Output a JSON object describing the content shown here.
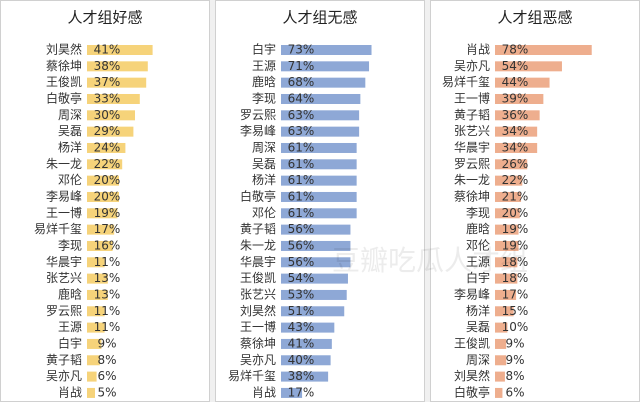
{
  "chart_data": [
    {
      "type": "bar",
      "title": "人才组好感",
      "color": "#f6d37a",
      "categories": [
        "刘昊然",
        "蔡徐坤",
        "王俊凯",
        "白敬亭",
        "周深",
        "吴磊",
        "杨洋",
        "朱一龙",
        "邓伦",
        "李易峰",
        "王一博",
        "易烊千玺",
        "李现",
        "华晨宇",
        "张艺兴",
        "鹿晗",
        "罗云熙",
        "王源",
        "白宇",
        "黄子韬",
        "吴亦凡",
        "肖战"
      ],
      "values": [
        41,
        38,
        37,
        33,
        30,
        29,
        24,
        22,
        20,
        20,
        19,
        17,
        16,
        11,
        13,
        13,
        11,
        11,
        9,
        8,
        6,
        5
      ],
      "value_labels": [
        "41%",
        "38%",
        "37%",
        "33%",
        "30%",
        "29%",
        "24%",
        "22%",
        "20%",
        "20%",
        "19%",
        "17%",
        "16%",
        "11%",
        "13%",
        "13%",
        "11%",
        "11%",
        "9%",
        "8%",
        "6%",
        "5%"
      ]
    },
    {
      "type": "bar",
      "title": "人才组无感",
      "color": "#8ea8d6",
      "categories": [
        "白宇",
        "王源",
        "鹿晗",
        "李现",
        "罗云熙",
        "李易峰",
        "周深",
        "吴磊",
        "杨洋",
        "白敬亭",
        "邓伦",
        "黄子韬",
        "朱一龙",
        "华晨宇",
        "王俊凯",
        "张艺兴",
        "刘昊然",
        "王一博",
        "蔡徐坤",
        "吴亦凡",
        "易烊千玺",
        "肖战"
      ],
      "values": [
        73,
        71,
        68,
        64,
        63,
        63,
        61,
        61,
        61,
        61,
        61,
        56,
        56,
        56,
        54,
        53,
        51,
        43,
        41,
        40,
        38,
        17
      ],
      "value_labels": [
        "73%",
        "71%",
        "68%",
        "64%",
        "63%",
        "63%",
        "61%",
        "61%",
        "61%",
        "61%",
        "61%",
        "56%",
        "56%",
        "56%",
        "54%",
        "53%",
        "51%",
        "43%",
        "41%",
        "40%",
        "38%",
        "17%"
      ]
    },
    {
      "type": "bar",
      "title": "人才组恶感",
      "color": "#eeae8e",
      "categories": [
        "肖战",
        "吴亦凡",
        "易烊千玺",
        "王一博",
        "黄子韬",
        "张艺兴",
        "华晨宇",
        "罗云熙",
        "朱一龙",
        "蔡徐坤",
        "李现",
        "鹿晗",
        "邓伦",
        "王源",
        "白宇",
        "李易峰",
        "杨洋",
        "吴磊",
        "王俊凯",
        "周深",
        "刘昊然",
        "白敬亭"
      ],
      "values": [
        78,
        54,
        44,
        39,
        36,
        34,
        34,
        26,
        22,
        21,
        20,
        19,
        19,
        18,
        18,
        17,
        15,
        10,
        9,
        9,
        8,
        6
      ],
      "value_labels": [
        "78%",
        "54%",
        "44%",
        "39%",
        "36%",
        "34%",
        "34%",
        "26%",
        "22%",
        "21%",
        "20%",
        "19%",
        "19%",
        "18%",
        "18%",
        "17%",
        "15%",
        "10%",
        "9%",
        "9%",
        "8%",
        "6%"
      ]
    }
  ],
  "watermark": "豆瓣吃瓜人才组"
}
